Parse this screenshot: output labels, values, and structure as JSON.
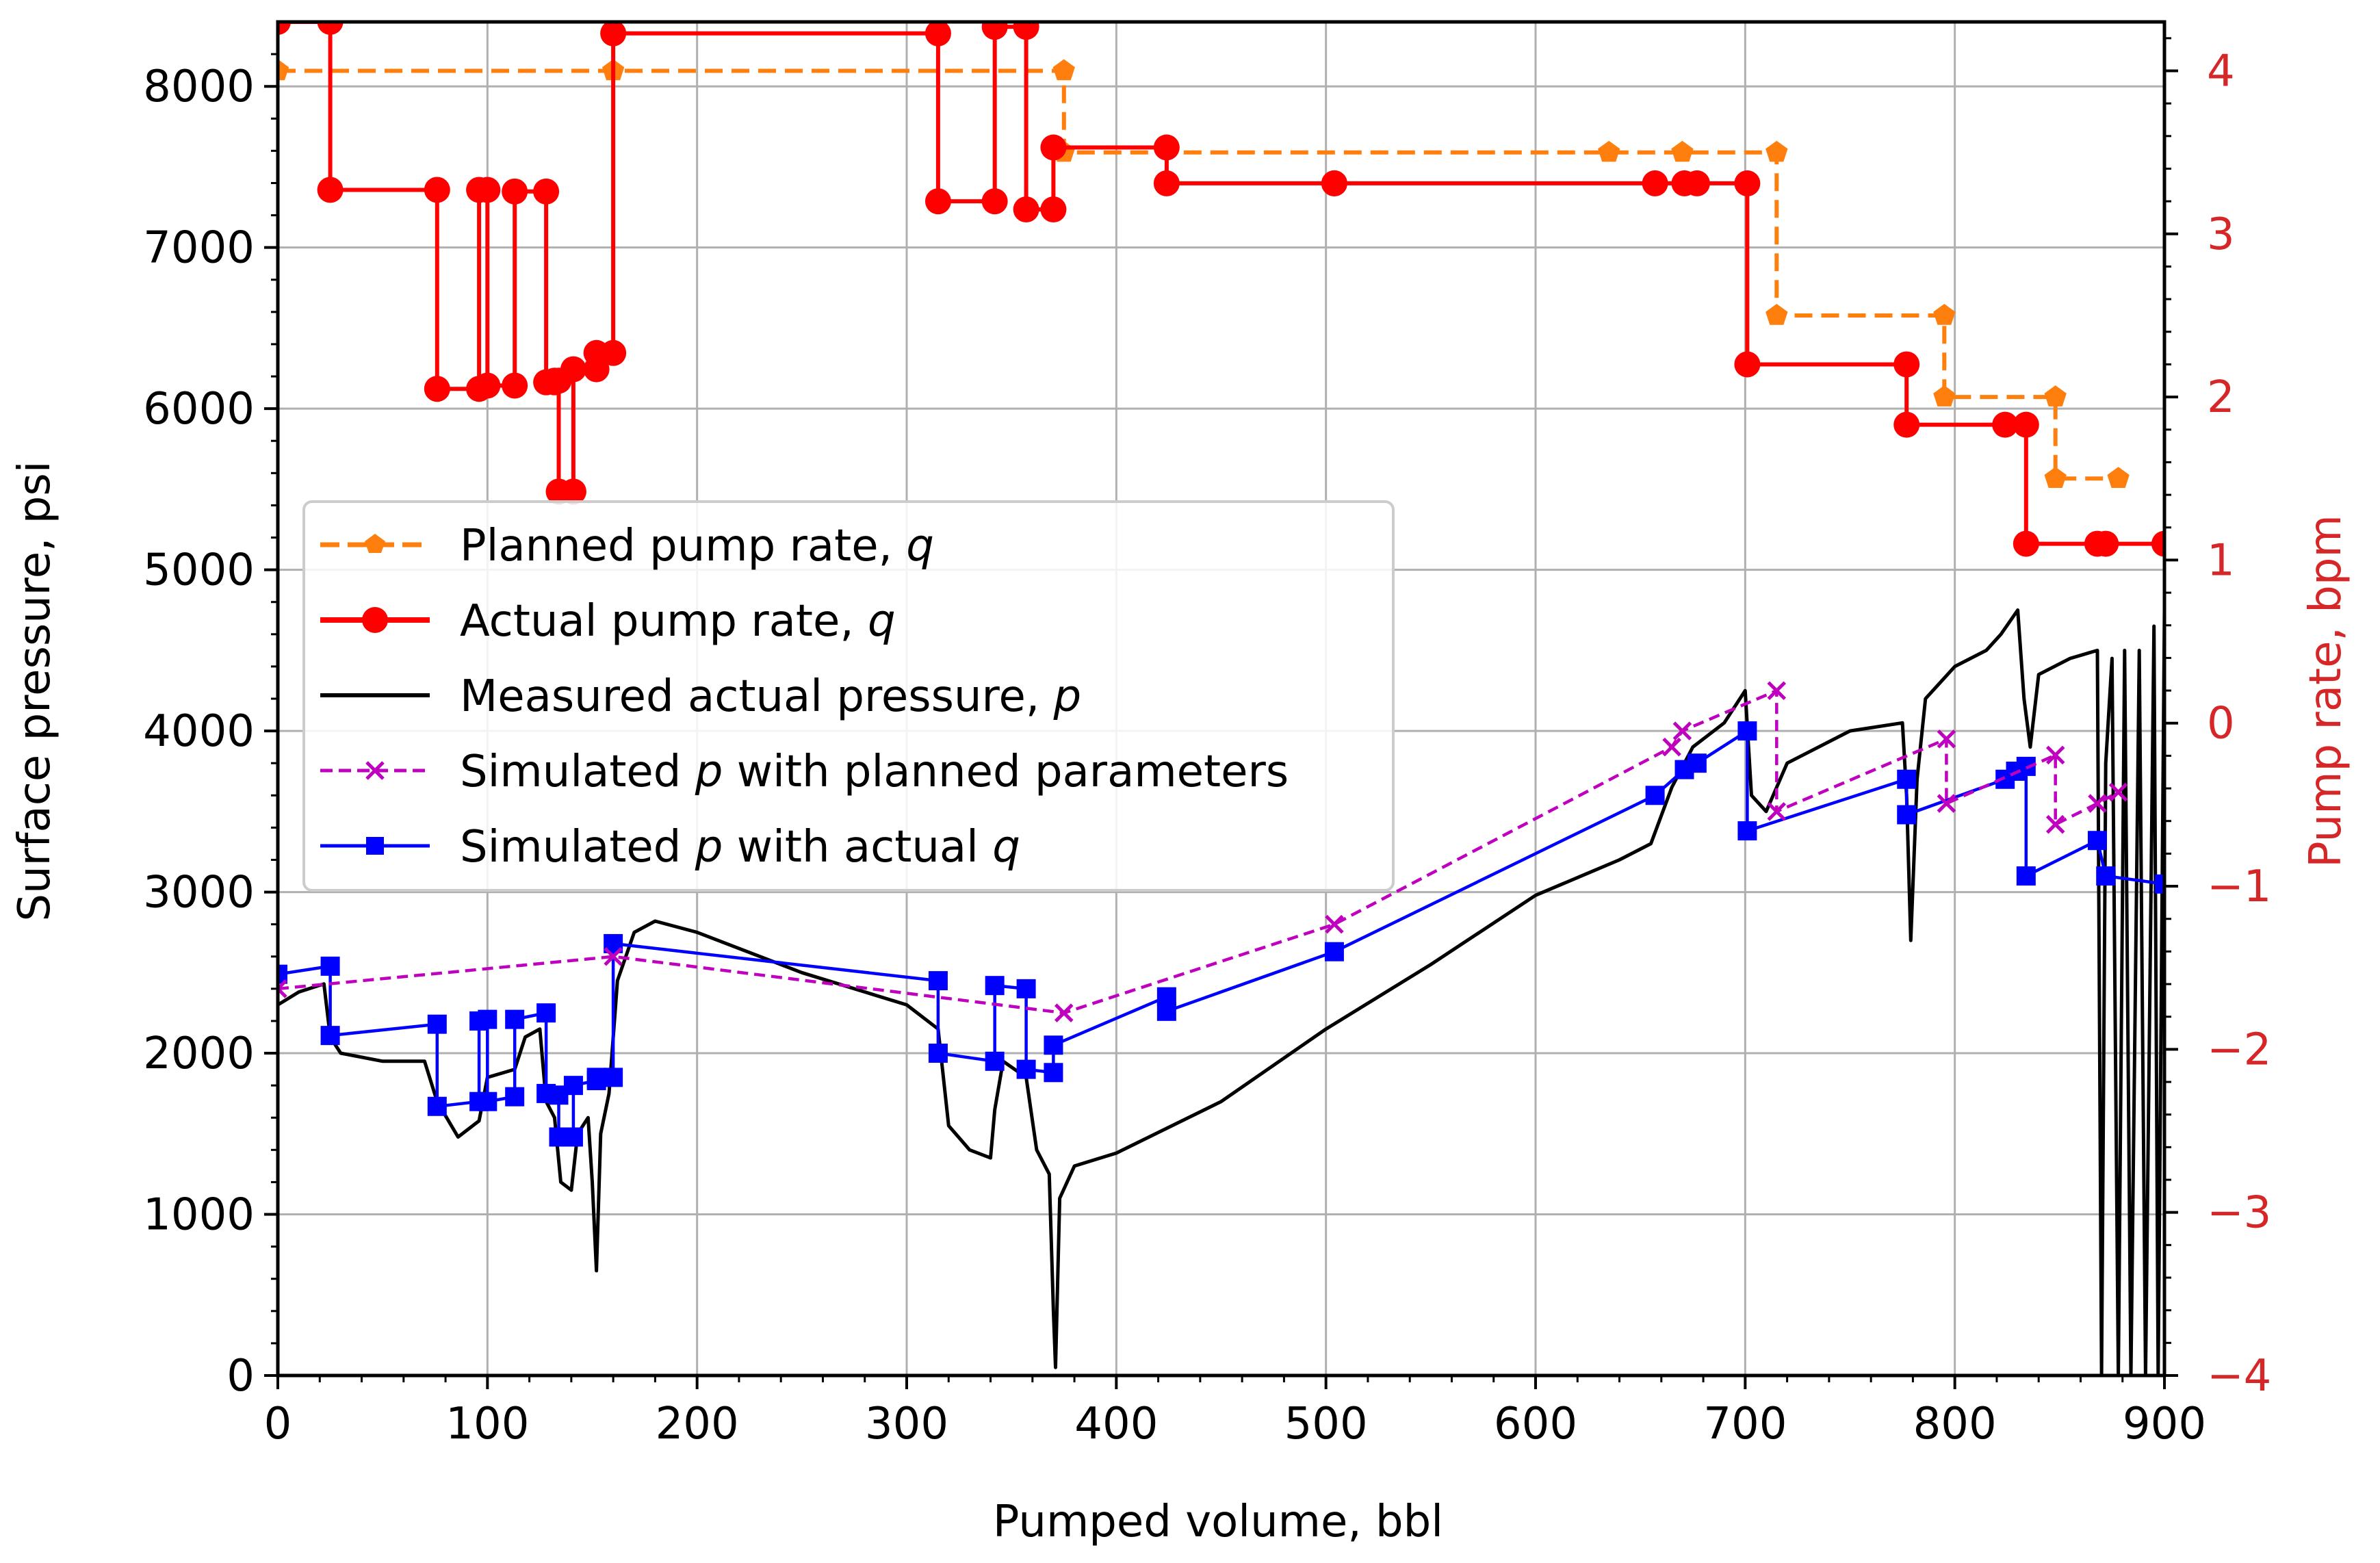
{
  "chart_data": {
    "type": "line",
    "xlabel": "Pumped volume, bbl",
    "ylabel_left": "Surface pressure, psi",
    "ylabel_right": "Pump rate, bpm",
    "xlim": [
      0,
      900
    ],
    "ylim_left": [
      0,
      8400
    ],
    "ylim_right": [
      -4,
      4.3
    ],
    "x_ticks": [
      0,
      100,
      200,
      300,
      400,
      500,
      600,
      700,
      800,
      900
    ],
    "x_tick_labels": [
      "0",
      "100",
      "200",
      "300",
      "400",
      "500",
      "600",
      "700",
      "800",
      "900"
    ],
    "y_left_ticks": [
      0,
      1000,
      2000,
      3000,
      4000,
      5000,
      6000,
      7000,
      8000
    ],
    "y_left_tick_labels": [
      "0",
      "1000",
      "2000",
      "3000",
      "4000",
      "5000",
      "6000",
      "7000",
      "8000"
    ],
    "y_right_ticks": [
      -4,
      -3,
      -2,
      -1,
      0,
      1,
      2,
      3,
      4
    ],
    "y_right_tick_labels": [
      "−4",
      "−3",
      "−2",
      "−1",
      "0",
      "1",
      "2",
      "3",
      "4"
    ],
    "grid": true,
    "legend_position": "center-left",
    "colors": {
      "planned_rate": "#ff7f0e",
      "actual_rate": "#ff0000",
      "measured_pressure": "#000000",
      "sim_planned": "#bf00bf",
      "sim_actual": "#0000ff",
      "right_axis": "#d62728"
    },
    "series": [
      {
        "name": "Planned pump rate, q",
        "legend_main": "Planned pump rate, ",
        "legend_var": "q",
        "axis": "right",
        "style": "dashed",
        "marker": "pentagon",
        "points": [
          [
            0,
            4
          ],
          [
            160,
            4
          ],
          [
            375,
            4
          ],
          [
            375,
            3.5
          ],
          [
            635,
            3.5
          ],
          [
            670,
            3.5
          ],
          [
            715,
            3.5
          ],
          [
            715,
            2.5
          ],
          [
            795,
            2.5
          ],
          [
            795,
            2
          ],
          [
            848,
            2
          ],
          [
            848,
            1.5
          ],
          [
            878,
            1.5
          ]
        ]
      },
      {
        "name": "Actual pump rate, q",
        "legend_main": "Actual pump rate, ",
        "legend_var": "q",
        "axis": "right",
        "style": "solid",
        "marker": "circle",
        "points": [
          [
            0,
            4.3
          ],
          [
            25,
            4.3
          ],
          [
            25,
            3.27
          ],
          [
            76,
            3.27
          ],
          [
            76,
            2.05
          ],
          [
            96,
            2.05
          ],
          [
            96,
            3.27
          ],
          [
            100,
            3.27
          ],
          [
            100,
            2.07
          ],
          [
            113,
            2.07
          ],
          [
            113,
            3.26
          ],
          [
            128,
            3.26
          ],
          [
            128,
            2.09
          ],
          [
            132,
            2.09
          ],
          [
            132,
            2.1
          ],
          [
            134,
            2.1
          ],
          [
            134,
            1.42
          ],
          [
            141,
            1.42
          ],
          [
            141,
            2.17
          ],
          [
            152,
            2.17
          ],
          [
            152,
            2.27
          ],
          [
            160,
            2.27
          ],
          [
            160,
            4.23
          ],
          [
            315,
            4.23
          ],
          [
            315,
            3.2
          ],
          [
            342,
            3.2
          ],
          [
            342,
            4.27
          ],
          [
            357,
            4.27
          ],
          [
            357,
            3.15
          ],
          [
            370,
            3.15
          ],
          [
            370,
            3.53
          ],
          [
            424,
            3.53
          ],
          [
            424,
            3.31
          ],
          [
            504,
            3.31
          ],
          [
            504,
            3.31
          ],
          [
            657,
            3.31
          ],
          [
            671,
            3.31
          ],
          [
            677,
            3.31
          ],
          [
            701,
            3.31
          ],
          [
            701,
            2.2
          ],
          [
            777,
            2.2
          ],
          [
            777,
            1.83
          ],
          [
            824,
            1.83
          ],
          [
            834,
            1.83
          ],
          [
            834,
            1.1
          ],
          [
            868,
            1.1
          ],
          [
            872,
            1.1
          ],
          [
            900,
            1.1
          ]
        ]
      },
      {
        "name": "Measured actual pressure, p",
        "legend_main": "Measured actual pressure, ",
        "legend_var": "p",
        "axis": "left",
        "style": "solid",
        "marker": "none",
        "points": [
          [
            0,
            2300
          ],
          [
            10,
            2380
          ],
          [
            22,
            2430
          ],
          [
            25,
            2100
          ],
          [
            30,
            2000
          ],
          [
            50,
            1950
          ],
          [
            70,
            1950
          ],
          [
            76,
            1700
          ],
          [
            86,
            1480
          ],
          [
            96,
            1580
          ],
          [
            100,
            1850
          ],
          [
            113,
            1900
          ],
          [
            118,
            2100
          ],
          [
            125,
            2150
          ],
          [
            128,
            1700
          ],
          [
            132,
            1600
          ],
          [
            135,
            1200
          ],
          [
            140,
            1150
          ],
          [
            143,
            1500
          ],
          [
            148,
            1600
          ],
          [
            150,
            1200
          ],
          [
            152,
            650
          ],
          [
            154,
            1500
          ],
          [
            158,
            1750
          ],
          [
            162,
            2450
          ],
          [
            170,
            2750
          ],
          [
            180,
            2820
          ],
          [
            200,
            2750
          ],
          [
            250,
            2500
          ],
          [
            300,
            2300
          ],
          [
            315,
            2150
          ],
          [
            320,
            1550
          ],
          [
            330,
            1400
          ],
          [
            340,
            1350
          ],
          [
            342,
            1650
          ],
          [
            346,
            1950
          ],
          [
            357,
            1850
          ],
          [
            362,
            1400
          ],
          [
            368,
            1250
          ],
          [
            370,
            400
          ],
          [
            371,
            50
          ],
          [
            373,
            1100
          ],
          [
            380,
            1300
          ],
          [
            400,
            1380
          ],
          [
            450,
            1700
          ],
          [
            500,
            2150
          ],
          [
            550,
            2550
          ],
          [
            600,
            2980
          ],
          [
            640,
            3200
          ],
          [
            655,
            3300
          ],
          [
            665,
            3650
          ],
          [
            675,
            3900
          ],
          [
            690,
            4050
          ],
          [
            700,
            4250
          ],
          [
            703,
            3600
          ],
          [
            710,
            3500
          ],
          [
            720,
            3800
          ],
          [
            750,
            4000
          ],
          [
            775,
            4050
          ],
          [
            777,
            3600
          ],
          [
            779,
            2700
          ],
          [
            782,
            3700
          ],
          [
            786,
            4200
          ],
          [
            800,
            4400
          ],
          [
            815,
            4500
          ],
          [
            822,
            4600
          ],
          [
            830,
            4750
          ],
          [
            833,
            4200
          ],
          [
            836,
            3900
          ],
          [
            840,
            4350
          ],
          [
            855,
            4450
          ],
          [
            868,
            4500
          ],
          [
            870,
            0
          ],
          [
            872,
            3800
          ],
          [
            875,
            4450
          ],
          [
            878,
            0
          ],
          [
            881,
            4500
          ],
          [
            884,
            0
          ],
          [
            888,
            4500
          ],
          [
            891,
            0
          ],
          [
            895,
            4650
          ],
          [
            897,
            0
          ],
          [
            900,
            4750
          ]
        ]
      },
      {
        "name": "Simulated p with planned parameters",
        "legend_main": "Simulated ",
        "legend_var": "p",
        "legend_rest": " with planned parameters",
        "axis": "left",
        "style": "dashed",
        "marker": "x",
        "points": [
          [
            0,
            2400
          ],
          [
            160,
            2600
          ],
          [
            375,
            2250
          ],
          [
            504,
            2800
          ],
          [
            665,
            3900
          ],
          [
            670,
            4000
          ],
          [
            715,
            4250
          ],
          [
            715,
            3500
          ],
          [
            796,
            3950
          ],
          [
            796,
            3550
          ],
          [
            848,
            3850
          ],
          [
            848,
            3420
          ],
          [
            868,
            3550
          ],
          [
            878,
            3620
          ]
        ]
      },
      {
        "name": "Simulated p with actual q",
        "legend_main": "Simulated ",
        "legend_var": "p",
        "legend_rest": " with actual ",
        "legend_var2": "q",
        "axis": "left",
        "style": "solid",
        "marker": "square",
        "points": [
          [
            0,
            2490
          ],
          [
            25,
            2540
          ],
          [
            25,
            2110
          ],
          [
            76,
            2180
          ],
          [
            76,
            1670
          ],
          [
            96,
            1700
          ],
          [
            96,
            2200
          ],
          [
            100,
            2210
          ],
          [
            100,
            1700
          ],
          [
            113,
            1730
          ],
          [
            113,
            2210
          ],
          [
            128,
            2250
          ],
          [
            128,
            1750
          ],
          [
            134,
            1740
          ],
          [
            134,
            1480
          ],
          [
            141,
            1480
          ],
          [
            141,
            1800
          ],
          [
            152,
            1830
          ],
          [
            152,
            1850
          ],
          [
            160,
            1850
          ],
          [
            160,
            2680
          ],
          [
            315,
            2450
          ],
          [
            315,
            2000
          ],
          [
            342,
            1950
          ],
          [
            342,
            2420
          ],
          [
            357,
            2400
          ],
          [
            357,
            1900
          ],
          [
            370,
            1880
          ],
          [
            370,
            2050
          ],
          [
            424,
            2350
          ],
          [
            424,
            2260
          ],
          [
            504,
            2630
          ],
          [
            657,
            3600
          ],
          [
            671,
            3760
          ],
          [
            677,
            3800
          ],
          [
            701,
            4000
          ],
          [
            701,
            3380
          ],
          [
            777,
            3700
          ],
          [
            777,
            3480
          ],
          [
            824,
            3700
          ],
          [
            829,
            3750
          ],
          [
            834,
            3780
          ],
          [
            834,
            3100
          ],
          [
            868,
            3320
          ],
          [
            872,
            3100
          ],
          [
            900,
            3050
          ]
        ]
      }
    ]
  }
}
